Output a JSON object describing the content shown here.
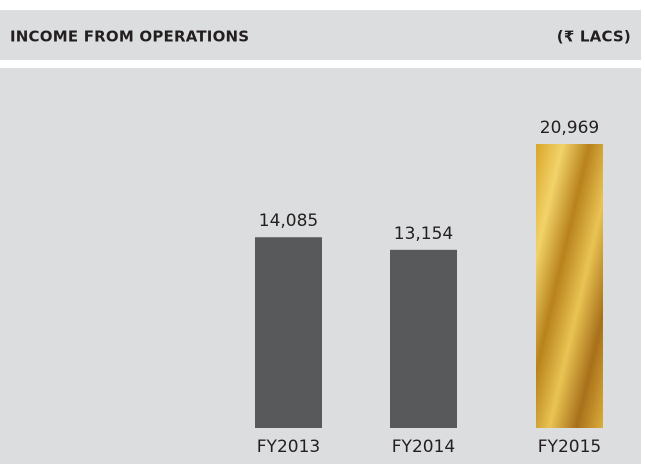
{
  "chart_data": {
    "type": "bar",
    "title": "INCOME FROM OPERATIONS",
    "unit_label": "(₹ LACS)",
    "categories": [
      "FY2013",
      "FY2014",
      "FY2015"
    ],
    "values": [
      14085,
      13154,
      20969
    ],
    "value_labels": [
      "14,085",
      "13,154",
      "20,969"
    ],
    "colors": [
      "#58595b",
      "#58595b",
      "gold"
    ]
  }
}
